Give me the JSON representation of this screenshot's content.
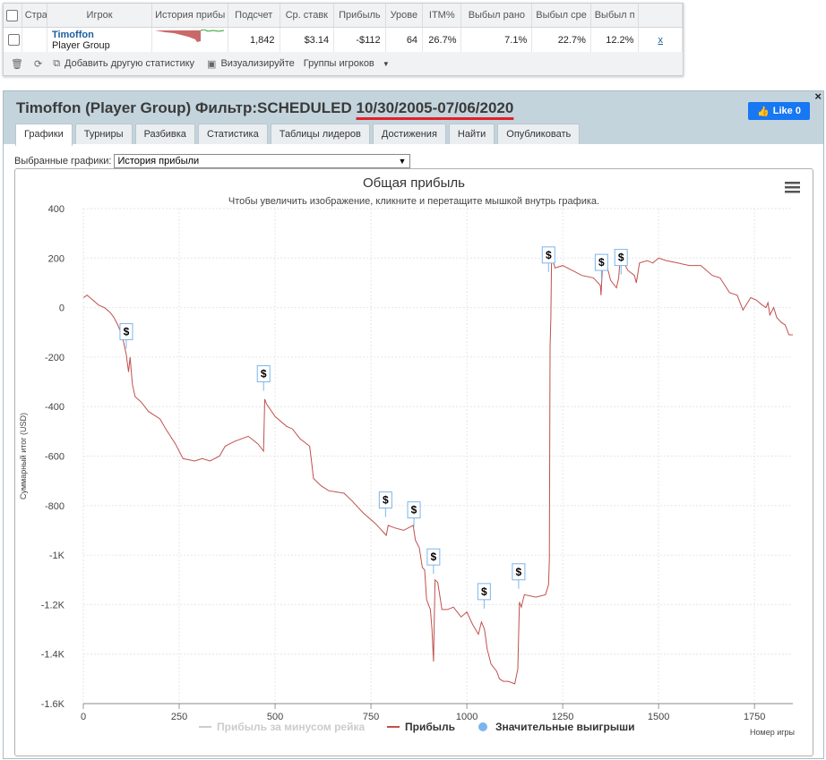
{
  "grid": {
    "columns": [
      "Стра",
      "Игрок",
      "История прибы",
      "Подсчет",
      "Ср. ставк",
      "Прибыль",
      "Урове",
      "ITM%",
      "Выбыл рано",
      "Выбыл сре",
      "Выбыл п"
    ],
    "row": {
      "player_name": "Timoffon",
      "player_group": "Player Group",
      "count": "1,842",
      "avg_stake": "$3.14",
      "profit": "-$112",
      "level": "64",
      "itm": "26.7%",
      "out_early": "7.1%",
      "out_mid": "22.7%",
      "out_late": "12.2%",
      "remove": "x"
    },
    "footer": {
      "add_stats": "Добавить другую статистику",
      "visualize": "Визуализируйте",
      "groups": "Группы игроков"
    }
  },
  "panel": {
    "title_main": "Timoffon (Player Group) Фильтр:SCHEDULED ",
    "title_dates": "10/30/2005-07/06/2020",
    "like_label": "Like 0",
    "close": "×",
    "tabs": [
      "Графики",
      "Турниры",
      "Разбивка",
      "Статистика",
      "Таблицы лидеров",
      "Достижения",
      "Найти",
      "Опубликовать"
    ],
    "select_label": "Выбранные графики:",
    "select_value": "История прибыли"
  },
  "colors": {
    "profit_line": "#c0504d",
    "big_win": "#7cb5ec",
    "rake_line": "#cccccc",
    "accent_underline": "#e2202a",
    "facebook": "#1877f2"
  },
  "chart_data": {
    "type": "line",
    "title": "Общая прибыль",
    "subtitle": "Чтобы увеличить изображение, кликните и перетащите мышкой внутрь графика.",
    "ylabel": "Суммарный итог (USD)",
    "xlabel": "Номер игры",
    "xlim": [
      0,
      1850
    ],
    "ylim": [
      -1600,
      400
    ],
    "x_ticks": [
      0,
      250,
      500,
      750,
      1000,
      1250,
      1500,
      1750
    ],
    "x_tick_labels": [
      "0",
      "250",
      "500",
      "750",
      "1000",
      "1250",
      "1500",
      "1750"
    ],
    "y_ticks": [
      400,
      200,
      0,
      -200,
      -400,
      -600,
      -800,
      -1000,
      -1200,
      -1400,
      -1600
    ],
    "y_tick_labels": [
      "400",
      "200",
      "0",
      "-200",
      "-400",
      "-600",
      "-800",
      "-1K",
      "-1.2K",
      "-1.4K",
      "-1.6K"
    ],
    "menu_icon": "hamburger-menu-icon",
    "legend": [
      "Прибыль за минусом рейка",
      "Прибыль",
      "Значительные выигрыши"
    ],
    "series": [
      {
        "name": "Прибыль",
        "points": [
          [
            0,
            40
          ],
          [
            10,
            50
          ],
          [
            25,
            30
          ],
          [
            40,
            10
          ],
          [
            55,
            0
          ],
          [
            70,
            -20
          ],
          [
            80,
            -40
          ],
          [
            90,
            -70
          ],
          [
            100,
            -110
          ],
          [
            105,
            -140
          ],
          [
            112,
            -190
          ],
          [
            118,
            -260
          ],
          [
            122,
            -200
          ],
          [
            128,
            -310
          ],
          [
            135,
            -360
          ],
          [
            150,
            -380
          ],
          [
            170,
            -420
          ],
          [
            200,
            -450
          ],
          [
            215,
            -490
          ],
          [
            240,
            -550
          ],
          [
            260,
            -610
          ],
          [
            290,
            -620
          ],
          [
            310,
            -610
          ],
          [
            330,
            -620
          ],
          [
            355,
            -600
          ],
          [
            370,
            -560
          ],
          [
            395,
            -540
          ],
          [
            430,
            -520
          ],
          [
            455,
            -550
          ],
          [
            470,
            -580
          ],
          [
            473,
            -370
          ],
          [
            478,
            -390
          ],
          [
            500,
            -440
          ],
          [
            530,
            -480
          ],
          [
            545,
            -490
          ],
          [
            565,
            -530
          ],
          [
            590,
            -560
          ],
          [
            595,
            -620
          ],
          [
            600,
            -690
          ],
          [
            620,
            -720
          ],
          [
            640,
            -740
          ],
          [
            660,
            -745
          ],
          [
            680,
            -750
          ],
          [
            700,
            -780
          ],
          [
            730,
            -830
          ],
          [
            760,
            -870
          ],
          [
            790,
            -920
          ],
          [
            795,
            -880
          ],
          [
            812,
            -890
          ],
          [
            835,
            -900
          ],
          [
            860,
            -880
          ],
          [
            866,
            -940
          ],
          [
            876,
            -970
          ],
          [
            884,
            -1050
          ],
          [
            890,
            -1060
          ],
          [
            895,
            -1180
          ],
          [
            905,
            -1220
          ],
          [
            909,
            -1300
          ],
          [
            913,
            -1430
          ],
          [
            917,
            -1100
          ],
          [
            924,
            -1110
          ],
          [
            935,
            -1220
          ],
          [
            950,
            -1220
          ],
          [
            965,
            -1210
          ],
          [
            985,
            -1250
          ],
          [
            1000,
            -1230
          ],
          [
            1015,
            -1280
          ],
          [
            1030,
            -1320
          ],
          [
            1038,
            -1270
          ],
          [
            1046,
            -1300
          ],
          [
            1053,
            -1380
          ],
          [
            1063,
            -1440
          ],
          [
            1078,
            -1470
          ],
          [
            1085,
            -1500
          ],
          [
            1095,
            -1510
          ],
          [
            1108,
            -1510
          ],
          [
            1125,
            -1520
          ],
          [
            1133,
            -1460
          ],
          [
            1137,
            -1190
          ],
          [
            1142,
            -1210
          ],
          [
            1150,
            -1160
          ],
          [
            1180,
            -1170
          ],
          [
            1205,
            -1160
          ],
          [
            1213,
            -1120
          ],
          [
            1215,
            -1020
          ],
          [
            1217,
            -160
          ],
          [
            1219,
            -40
          ],
          [
            1221,
            220
          ],
          [
            1224,
            190
          ],
          [
            1230,
            160
          ],
          [
            1250,
            170
          ],
          [
            1275,
            150
          ],
          [
            1300,
            130
          ],
          [
            1330,
            120
          ],
          [
            1348,
            90
          ],
          [
            1350,
            50
          ],
          [
            1355,
            210
          ],
          [
            1365,
            170
          ],
          [
            1375,
            110
          ],
          [
            1390,
            80
          ],
          [
            1396,
            120
          ],
          [
            1400,
            210
          ],
          [
            1410,
            180
          ],
          [
            1420,
            150
          ],
          [
            1437,
            130
          ],
          [
            1442,
            100
          ],
          [
            1450,
            180
          ],
          [
            1470,
            190
          ],
          [
            1485,
            180
          ],
          [
            1500,
            200
          ],
          [
            1520,
            190
          ],
          [
            1550,
            180
          ],
          [
            1580,
            170
          ],
          [
            1610,
            170
          ],
          [
            1640,
            130
          ],
          [
            1660,
            120
          ],
          [
            1685,
            60
          ],
          [
            1705,
            50
          ],
          [
            1720,
            -10
          ],
          [
            1740,
            40
          ],
          [
            1755,
            30
          ],
          [
            1770,
            10
          ],
          [
            1780,
            0
          ],
          [
            1785,
            20
          ],
          [
            1790,
            -30
          ],
          [
            1800,
            0
          ],
          [
            1808,
            -40
          ],
          [
            1820,
            -60
          ],
          [
            1830,
            -70
          ],
          [
            1840,
            -110
          ],
          [
            1850,
            -110
          ]
        ]
      },
      {
        "name": "Значительные выигрыши",
        "points": [
          [
            112,
            -130
          ],
          [
            470,
            -300
          ],
          [
            788,
            -810
          ],
          [
            862,
            -850
          ],
          [
            913,
            -1040
          ],
          [
            1045,
            -1180
          ],
          [
            1135,
            -1100
          ],
          [
            1213,
            180
          ],
          [
            1351,
            150
          ],
          [
            1402,
            170
          ]
        ]
      }
    ]
  }
}
